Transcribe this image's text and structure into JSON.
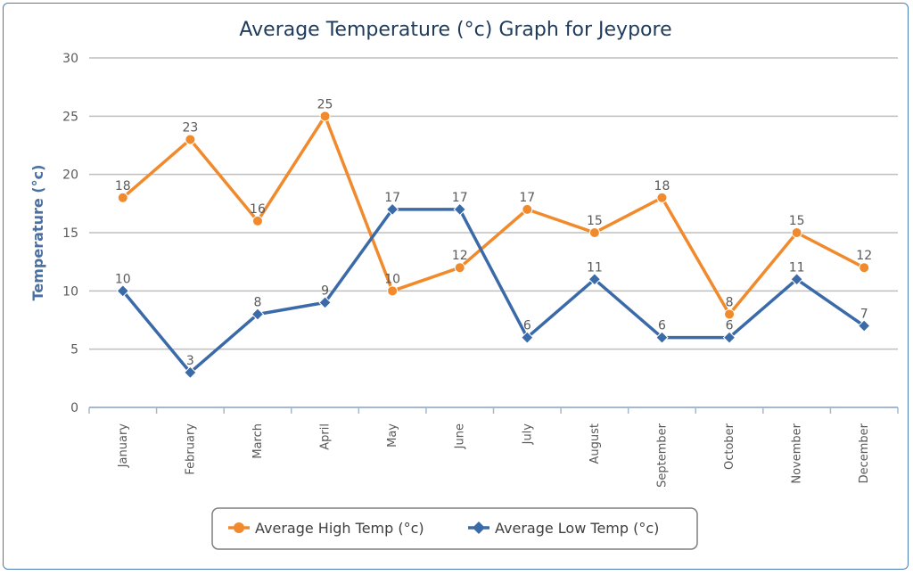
{
  "chart_data": {
    "type": "line",
    "title": "Average Temperature (°c) Graph for Jeypore",
    "xlabel": "",
    "ylabel": "Temperature (°c)",
    "ylim": [
      0,
      30
    ],
    "yticks": [
      0,
      5,
      10,
      15,
      20,
      25,
      30
    ],
    "grid": true,
    "legend_position": "bottom",
    "categories": [
      "January",
      "February",
      "March",
      "April",
      "May",
      "June",
      "July",
      "August",
      "September",
      "October",
      "November",
      "December"
    ],
    "series": [
      {
        "name": "Average High Temp (°c)",
        "color": "#f08a2c",
        "marker": "circle",
        "values": [
          18,
          23,
          16,
          25,
          10,
          12,
          17,
          15,
          18,
          8,
          15,
          12
        ]
      },
      {
        "name": "Average Low Temp (°c)",
        "color": "#3a6aa8",
        "marker": "diamond",
        "values": [
          10,
          3,
          8,
          9,
          17,
          17,
          6,
          11,
          6,
          6,
          11,
          7
        ]
      }
    ]
  }
}
